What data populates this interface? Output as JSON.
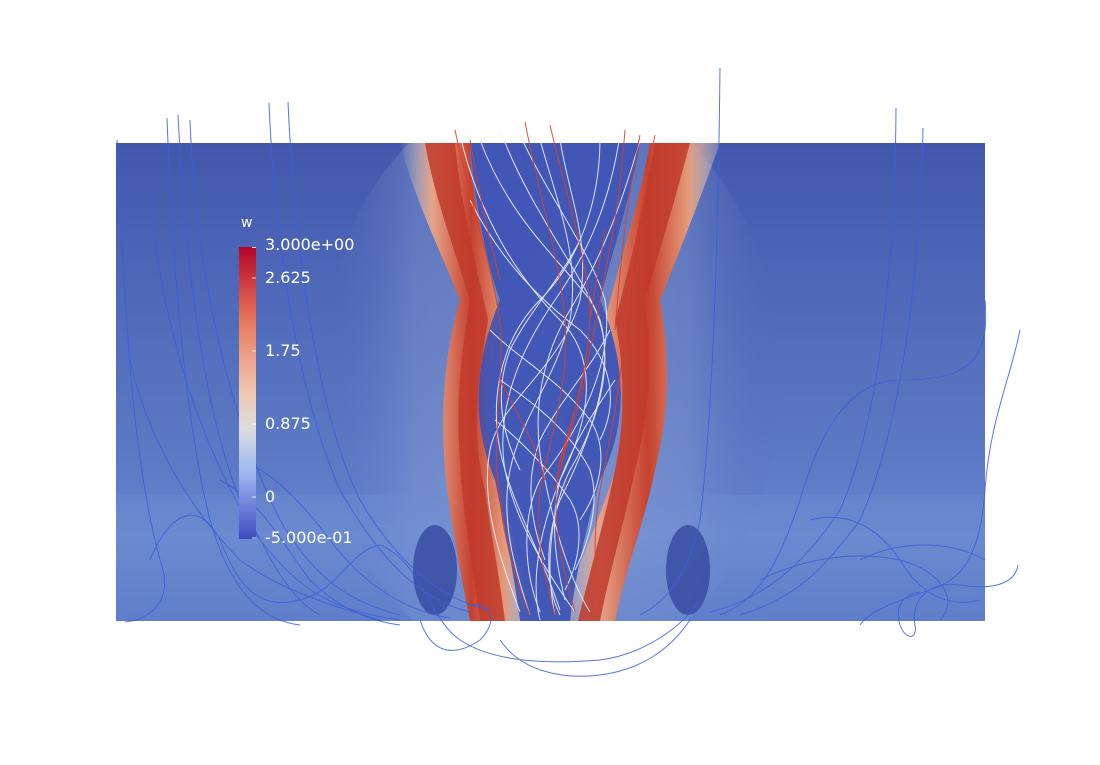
{
  "scalar_bar": {
    "title": "w",
    "labels": [
      "3.000e+00",
      "2.625",
      "1.75",
      "0.875",
      "0",
      "-5.000e-01"
    ],
    "range": [
      -0.5,
      3.0
    ],
    "colormap": {
      "low": "#3b4cc0",
      "mid": "#dddddd",
      "high": "#b40426"
    }
  },
  "colors": {
    "background": "#ffffff",
    "field_base": "#4a63b8",
    "streamline_outer": "#3c5fd8",
    "streamline_inner_light": "#eef3ff",
    "streamline_inner_red": "#d8402b"
  }
}
